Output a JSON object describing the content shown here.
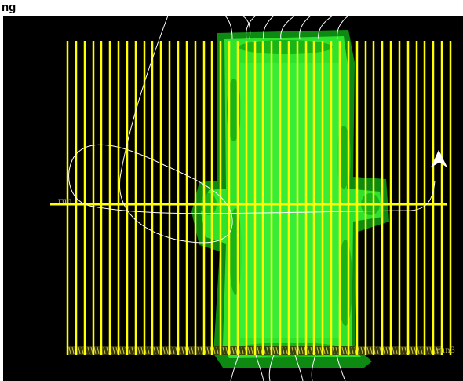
{
  "window": {
    "title": "ng"
  },
  "scene": {
    "background": "#000000",
    "line_color": "#ffff00",
    "track_color": "#ffffff",
    "field_color": "#22e022",
    "field_dark": "#10a810",
    "labels": {
      "horizontal_run": "run",
      "bottom_run": "run3"
    },
    "arrow_icon": "arrowhead-icon"
  }
}
